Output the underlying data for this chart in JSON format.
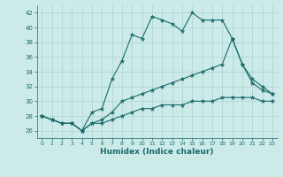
{
  "xlabel": "Humidex (Indice chaleur)",
  "background_color": "#cceae8",
  "grid_color": "#aad4d2",
  "line_color": "#1a6b6b",
  "xlim": [
    -0.5,
    23.5
  ],
  "ylim": [
    25,
    43
  ],
  "yticks": [
    26,
    28,
    30,
    32,
    34,
    36,
    38,
    40,
    42
  ],
  "xticks": [
    0,
    1,
    2,
    3,
    4,
    5,
    6,
    7,
    8,
    9,
    10,
    11,
    12,
    13,
    14,
    15,
    16,
    17,
    18,
    19,
    20,
    21,
    22,
    23
  ],
  "series": [
    {
      "x": [
        0,
        1,
        2,
        3,
        4,
        5,
        6,
        7,
        8,
        9,
        10,
        11,
        12,
        13,
        14,
        15,
        16,
        17,
        18,
        19,
        20,
        21,
        22,
        23
      ],
      "y": [
        28,
        27.5,
        27,
        27,
        26,
        28.5,
        29,
        33,
        35.5,
        39,
        38.5,
        41.5,
        41,
        40.5,
        39.5,
        42,
        41,
        41,
        41,
        38.5,
        35,
        32.5,
        31.5,
        31
      ]
    },
    {
      "x": [
        0,
        1,
        2,
        3,
        4,
        5,
        6,
        7,
        8,
        9,
        10,
        11,
        12,
        13,
        14,
        15,
        16,
        17,
        18,
        19,
        20,
        21,
        22,
        23
      ],
      "y": [
        28,
        27.5,
        27,
        27,
        26,
        27,
        27.5,
        28.5,
        30,
        30.5,
        31,
        31.5,
        32,
        32.5,
        33,
        33.5,
        34,
        34.5,
        35,
        38.5,
        35,
        33,
        32,
        31
      ]
    },
    {
      "x": [
        0,
        1,
        2,
        3,
        4,
        5,
        6,
        7,
        8,
        9,
        10,
        11,
        12,
        13,
        14,
        15,
        16,
        17,
        18,
        19,
        20,
        21,
        22,
        23
      ],
      "y": [
        28,
        27.5,
        27,
        27,
        26,
        27,
        27,
        27.5,
        28,
        28.5,
        29,
        29,
        29.5,
        29.5,
        29.5,
        30,
        30,
        30,
        30.5,
        30.5,
        30.5,
        30.5,
        30,
        30
      ]
    }
  ]
}
